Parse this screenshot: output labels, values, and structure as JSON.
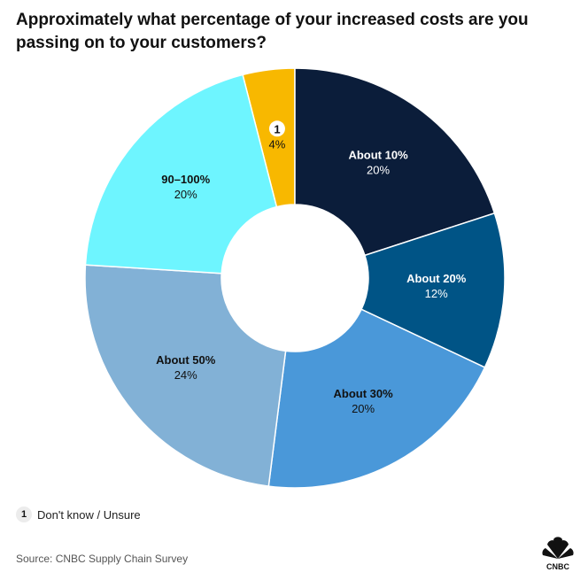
{
  "chart_data": {
    "type": "pie",
    "subtype": "donut",
    "title": "Approximately what percentage of your increased costs are you passing on to your customers?",
    "categories": [
      "1",
      "About 10%",
      "About 20%",
      "About 30%",
      "About 50%",
      "90–100%"
    ],
    "values": [
      4,
      20,
      12,
      20,
      24,
      20
    ],
    "value_labels": [
      "4%",
      "20%",
      "12%",
      "20%",
      "24%",
      "20%"
    ],
    "colors": [
      "#f8b800",
      "#0b1d3a",
      "#005486",
      "#4a98d9",
      "#82b1d6",
      "#6ef5ff"
    ],
    "label_colors": [
      "#111111",
      "#ffffff",
      "#ffffff",
      "#111111",
      "#111111",
      "#111111"
    ],
    "footnote": {
      "marker": "1",
      "text": "Don't know / Unsure"
    },
    "source": "Source: CNBC Supply Chain Survey",
    "logo": "CNBC"
  }
}
